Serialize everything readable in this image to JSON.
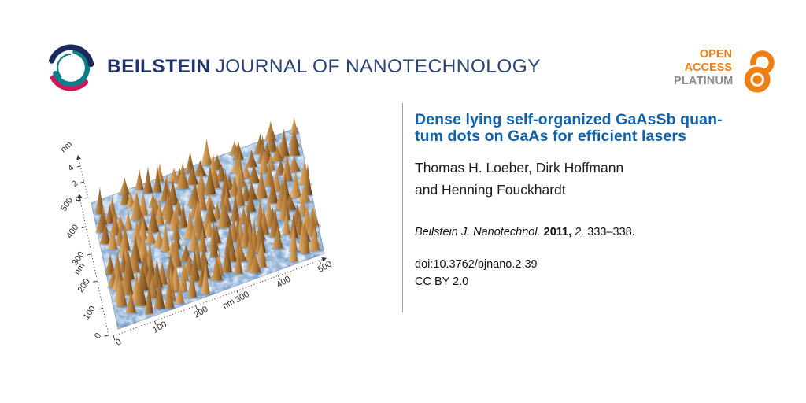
{
  "header": {
    "journal_name_bold": "BEILSTEIN",
    "journal_name_rest": "JOURNAL OF NANOTECHNOLOGY",
    "brand_colors": {
      "navy": "#20356B",
      "teal": "#0A7F87",
      "magenta": "#D0175C"
    },
    "open_access": {
      "line1": "OPEN",
      "line2": "ACCESS",
      "line3": "PLATINUM",
      "orange": "#EE7F12",
      "gray": "#8C8C8C",
      "icon": "open-access-lock-icon"
    }
  },
  "article": {
    "title_lines": [
      "Dense lying self-organized GaAsSb quan-",
      "tum dots on GaAs for efficient lasers"
    ],
    "title_color": "#0E62AE",
    "author_lines": [
      "Thomas H. Loeber, Dirk Hoffmann",
      "and Henning Fouckhardt"
    ],
    "citation": {
      "journal": "Beilstein J. Nanotechnol.",
      "year": "2011,",
      "volume": "2,",
      "pages": "333–338."
    },
    "doi": "doi:10.3762/bjnano.2.39",
    "license": "CC BY 2.0"
  },
  "figure": {
    "description": "3D AFM topography image of dense self-organized GaAsSb quantum dots on a GaAs surface",
    "x_axis": {
      "unit": "nm",
      "ticks": [
        0,
        100,
        200,
        300,
        400,
        500
      ]
    },
    "y_axis": {
      "unit": "nm",
      "ticks": [
        0,
        100,
        200,
        300,
        400,
        500
      ]
    },
    "z_axis": {
      "unit": "nm",
      "ticks": [
        0,
        2,
        4
      ]
    },
    "colors": {
      "surface_light": "#BBD5EA",
      "surface_mid": "#85ACD5",
      "surface_dark": "#5D83AF",
      "dot_light": "#E0B278",
      "dot_mid": "#B5813E",
      "dot_dark": "#744A1B",
      "axis": "#2E2E2E"
    },
    "seed": 12,
    "grid_n": 17
  }
}
